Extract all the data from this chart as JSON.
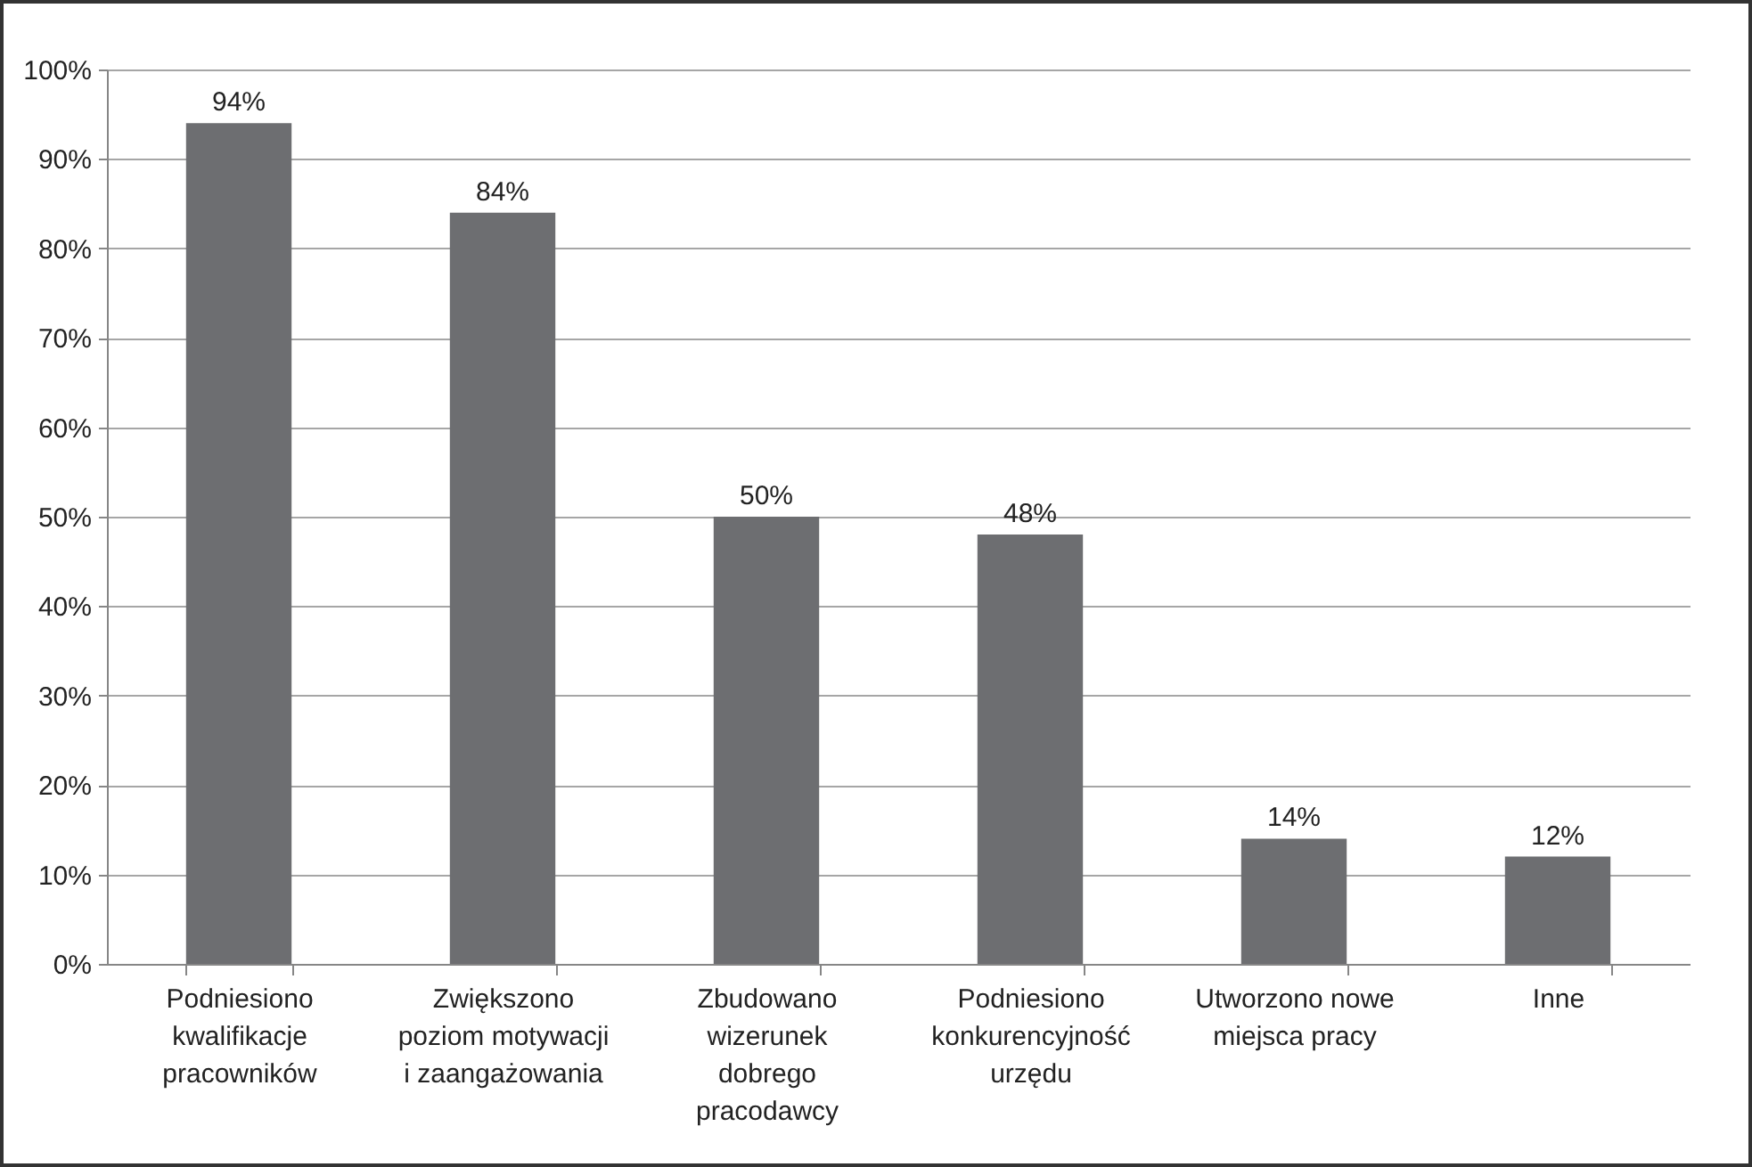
{
  "chart_data": {
    "type": "bar",
    "categories": [
      "Podniesiono kwalifikacje pracowników",
      "Zwiększono poziom motywacji i zaangażowania",
      "Zbudowano wizerunek dobrego pracodawcy",
      "Podniesiono konkurencyjność urzędu",
      "Utworzono nowe miejsca pracy",
      "Inne"
    ],
    "values": [
      94,
      84,
      50,
      48,
      14,
      12
    ],
    "value_labels": [
      "94%",
      "84%",
      "50%",
      "48%",
      "14%",
      "12%"
    ],
    "color": "#6d6e71",
    "ylim": [
      0,
      100
    ],
    "yticks": [
      {
        "value": 0,
        "label": "0%"
      },
      {
        "value": 10,
        "label": "10%"
      },
      {
        "value": 20,
        "label": "20%"
      },
      {
        "value": 30,
        "label": "30%"
      },
      {
        "value": 40,
        "label": "40%"
      },
      {
        "value": 50,
        "label": "50%"
      },
      {
        "value": 60,
        "label": "60%"
      },
      {
        "value": 70,
        "label": "70%"
      },
      {
        "value": 80,
        "label": "80%"
      },
      {
        "value": 90,
        "label": "90%"
      },
      {
        "value": 100,
        "label": "100%"
      }
    ],
    "grid": "y"
  }
}
